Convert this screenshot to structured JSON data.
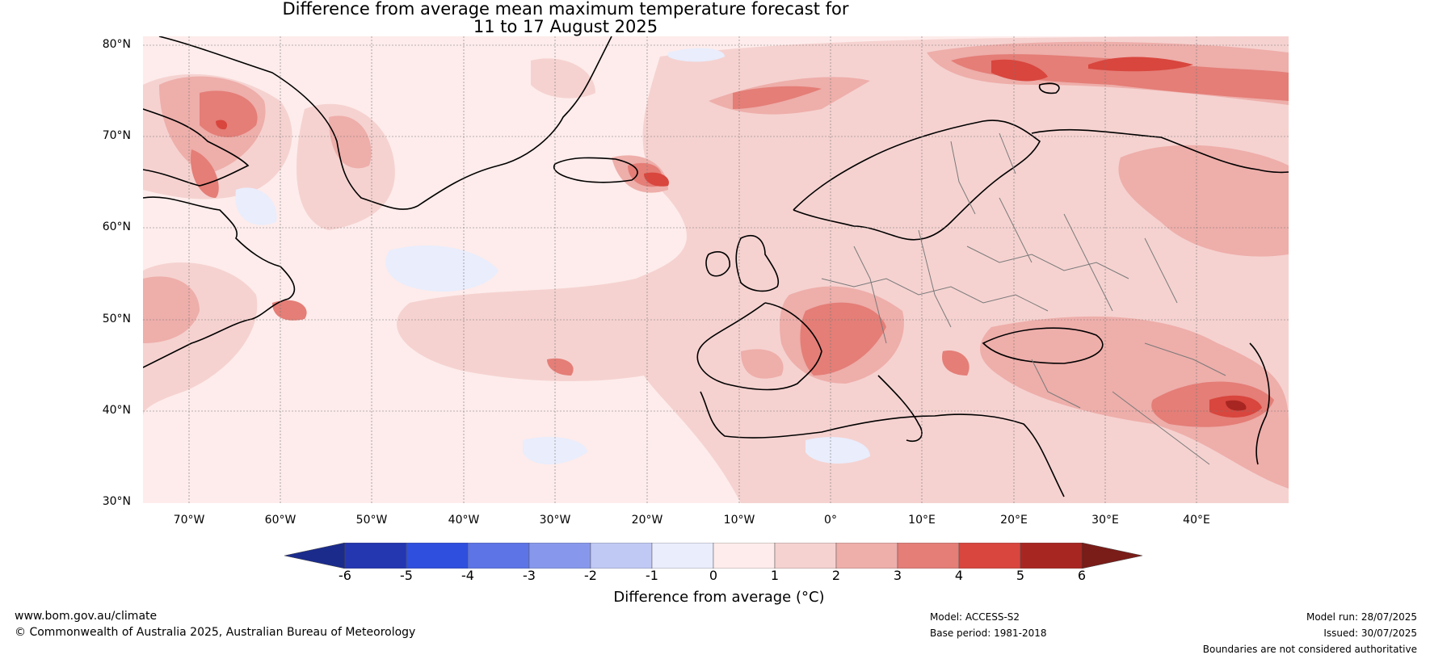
{
  "title": {
    "line1": "Difference from average mean maximum temperature forecast for",
    "line2": "11 to 17 August 2025"
  },
  "lat_labels": [
    "80°N",
    "70°N",
    "60°N",
    "50°N",
    "40°N",
    "30°N"
  ],
  "lon_labels": [
    "70°W",
    "60°W",
    "50°W",
    "40°W",
    "30°W",
    "20°W",
    "10°W",
    "0°",
    "10°E",
    "20°E",
    "30°E",
    "40°E"
  ],
  "colorbar": {
    "ticks": [
      "-6",
      "-5",
      "-4",
      "-3",
      "-2",
      "-1",
      "0",
      "1",
      "2",
      "3",
      "4",
      "5",
      "6"
    ],
    "colors": [
      "#1a2b8c",
      "#2436b0",
      "#2f4fde",
      "#5c74e6",
      "#8798ec",
      "#c0c9f4",
      "#e9edfc",
      "#fdeceb",
      "#f5d2d0",
      "#eeaeaa",
      "#e47e77",
      "#d8463e",
      "#a82622",
      "#7a1c18"
    ],
    "label": "Difference from average (°C)"
  },
  "footer": {
    "website": "www.bom.gov.au/climate",
    "copyright": "© Commonwealth of Australia 2025, Australian Bureau of Meteorology",
    "model": "Model: ACCESS-S2",
    "base_period": "Base period: 1981-2018",
    "model_run": "Model run: 28/07/2025",
    "issued": "Issued: 30/07/2025",
    "disclaimer": "Boundaries are not considered authoritative"
  }
}
